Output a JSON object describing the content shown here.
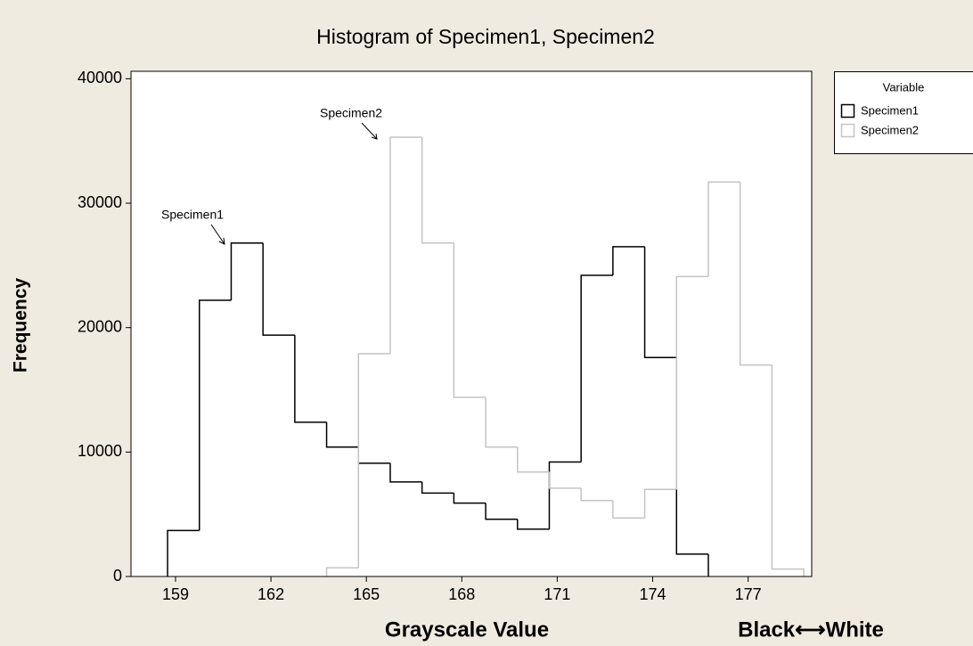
{
  "chart_data": {
    "type": "histogram",
    "title": "Histogram of Specimen1, Specimen2",
    "x_label": "Grayscale Value",
    "y_label": "Frequency",
    "x_note": "Black⟷White",
    "legend_title": "Variable",
    "legend": "right",
    "annotations": [
      "Specimen1",
      "Specimen2"
    ],
    "bins": [
      158.75,
      159.75,
      160.75,
      161.75,
      162.75,
      163.75,
      164.75,
      165.75,
      166.75,
      167.75,
      168.75,
      169.75,
      170.75,
      171.75,
      172.75,
      173.75,
      174.75,
      175.75,
      176.75,
      177.75,
      178.75
    ],
    "series": [
      {
        "name": "Specimen1",
        "color": "#000000",
        "values": [
          3700,
          22200,
          26800,
          19400,
          12400,
          10400,
          9100,
          7600,
          6700,
          5900,
          4600,
          3800,
          9200,
          24200,
          26500,
          17600,
          1800,
          0,
          0,
          0
        ]
      },
      {
        "name": "Specimen2",
        "color": "#c4c4c4",
        "values": [
          0,
          0,
          0,
          0,
          0,
          700,
          17900,
          35300,
          26800,
          14400,
          10400,
          8400,
          7100,
          6100,
          4700,
          7000,
          24100,
          31700,
          17000,
          600
        ]
      }
    ],
    "xlim": [
      157.6,
      179
    ],
    "xticks": [
      159,
      162,
      165,
      168,
      171,
      174,
      177
    ],
    "ylim": [
      0,
      40600
    ],
    "yticks": [
      0,
      10000,
      20000,
      30000,
      40000
    ]
  }
}
